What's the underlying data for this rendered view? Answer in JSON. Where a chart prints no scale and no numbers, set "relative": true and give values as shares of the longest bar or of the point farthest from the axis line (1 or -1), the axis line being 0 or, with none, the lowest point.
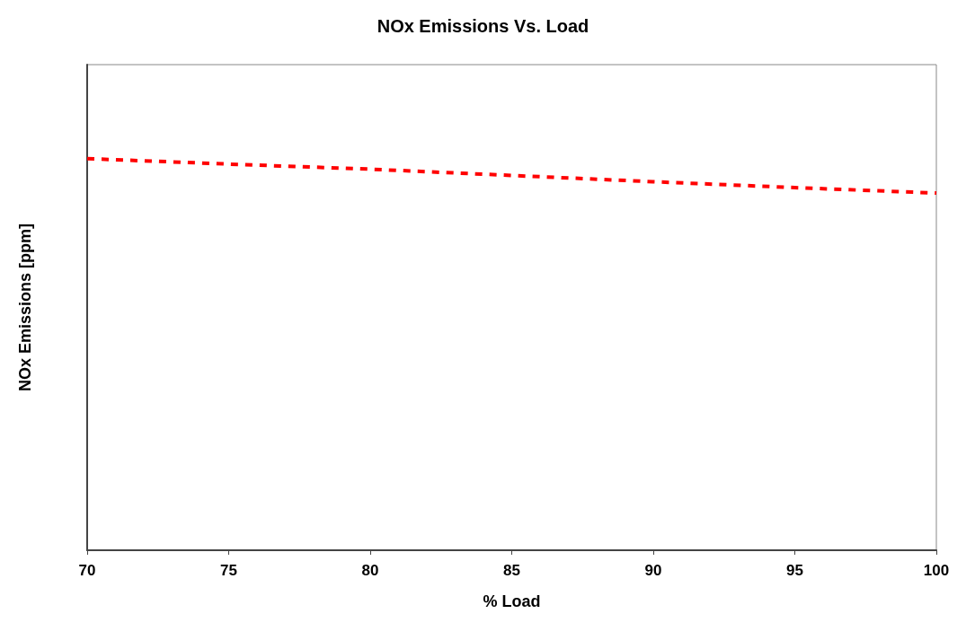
{
  "chart_data": {
    "type": "line",
    "title": "NOx Emissions Vs. Load",
    "xlabel": "% Load",
    "ylabel": "NOx Emissions [ppm]",
    "relative": true,
    "x": [
      70,
      75,
      80,
      85,
      90,
      95,
      100
    ],
    "series": [
      {
        "color": "#ff0000",
        "values": [
          1,
          0.986,
          0.973,
          0.957,
          0.941,
          0.926,
          0.912
        ]
      }
    ],
    "xlim": [
      70,
      100
    ],
    "xticks": [
      70,
      75,
      80,
      85,
      90,
      95,
      100
    ],
    "grid": false,
    "marker": "none",
    "line_style": "dashed"
  }
}
